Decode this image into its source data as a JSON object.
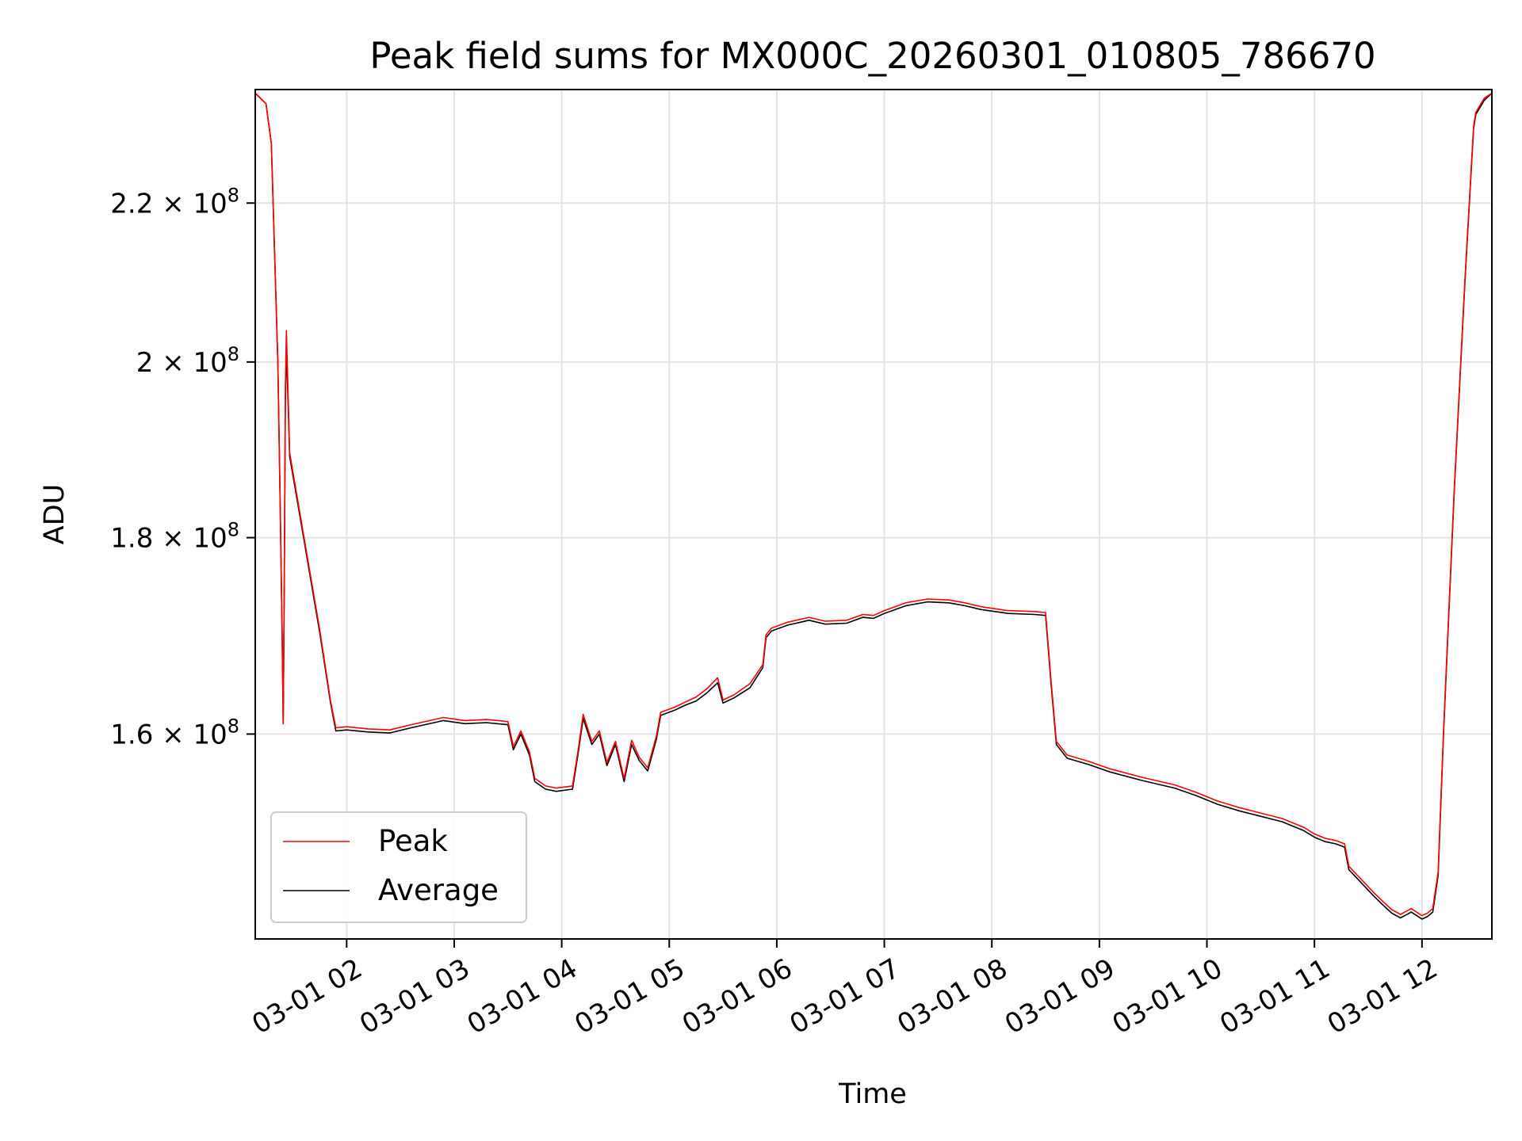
{
  "chart_data": {
    "type": "line",
    "title": "Peak field sums for MX000C_20260301_010805_786670",
    "xlabel": "Time",
    "ylabel": "ADU",
    "y_scale": "log",
    "x_unit": "hours since 2026-03-01 00:00",
    "xlim": [
      1.15,
      12.65
    ],
    "ylim": [
      141500000,
      235500000
    ],
    "y_ticks": [
      {
        "value": 160000000,
        "mantissa": "1.6",
        "exponent": "8"
      },
      {
        "value": 180000000,
        "mantissa": "1.8",
        "exponent": "8"
      },
      {
        "value": 200000000,
        "mantissa": "2",
        "exponent": "8"
      },
      {
        "value": 220000000,
        "mantissa": "2.2",
        "exponent": "8"
      }
    ],
    "x_ticks": [
      {
        "value": 2,
        "label": "03-01 02"
      },
      {
        "value": 3,
        "label": "03-01 03"
      },
      {
        "value": 4,
        "label": "03-01 04"
      },
      {
        "value": 5,
        "label": "03-01 05"
      },
      {
        "value": 6,
        "label": "03-01 06"
      },
      {
        "value": 7,
        "label": "03-01 07"
      },
      {
        "value": 8,
        "label": "03-01 08"
      },
      {
        "value": 9,
        "label": "03-01 09"
      },
      {
        "value": 10,
        "label": "03-01 10"
      },
      {
        "value": 11,
        "label": "03-01 11"
      },
      {
        "value": 12,
        "label": "03-01 12"
      }
    ],
    "grid": true,
    "legend_position": "lower-left",
    "series": [
      {
        "name": "Average",
        "color": "#000000",
        "points": [
          [
            1.15,
            235000000
          ],
          [
            1.25,
            233500000
          ],
          [
            1.3,
            228000000
          ],
          [
            1.36,
            200000000
          ],
          [
            1.38,
            185000000
          ],
          [
            1.4,
            170000000
          ],
          [
            1.41,
            161000000
          ],
          [
            1.42,
            175000000
          ],
          [
            1.43,
            195000000
          ],
          [
            1.44,
            202000000
          ],
          [
            1.47,
            189000000
          ],
          [
            1.6,
            180000000
          ],
          [
            1.75,
            170000000
          ],
          [
            1.85,
            163000000
          ],
          [
            1.9,
            160300000
          ],
          [
            2.0,
            160400000
          ],
          [
            2.2,
            160200000
          ],
          [
            2.4,
            160100000
          ],
          [
            2.6,
            160600000
          ],
          [
            2.9,
            161300000
          ],
          [
            3.1,
            161000000
          ],
          [
            3.3,
            161100000
          ],
          [
            3.5,
            160900000
          ],
          [
            3.55,
            158500000
          ],
          [
            3.62,
            160000000
          ],
          [
            3.7,
            158000000
          ],
          [
            3.75,
            155500000
          ],
          [
            3.85,
            154800000
          ],
          [
            3.95,
            154600000
          ],
          [
            4.1,
            154800000
          ],
          [
            4.15,
            158000000
          ],
          [
            4.2,
            161500000
          ],
          [
            4.28,
            159000000
          ],
          [
            4.35,
            160000000
          ],
          [
            4.42,
            157000000
          ],
          [
            4.5,
            159000000
          ],
          [
            4.58,
            155500000
          ],
          [
            4.65,
            159000000
          ],
          [
            4.72,
            157500000
          ],
          [
            4.8,
            156500000
          ],
          [
            4.88,
            159500000
          ],
          [
            4.92,
            161800000
          ],
          [
            5.05,
            162300000
          ],
          [
            5.15,
            162800000
          ],
          [
            5.25,
            163200000
          ],
          [
            5.35,
            164000000
          ],
          [
            5.45,
            165000000
          ],
          [
            5.5,
            163000000
          ],
          [
            5.6,
            163500000
          ],
          [
            5.75,
            164500000
          ],
          [
            5.87,
            166500000
          ],
          [
            5.9,
            169500000
          ],
          [
            5.95,
            170200000
          ],
          [
            6.1,
            170800000
          ],
          [
            6.3,
            171300000
          ],
          [
            6.45,
            170900000
          ],
          [
            6.65,
            171000000
          ],
          [
            6.8,
            171600000
          ],
          [
            6.9,
            171500000
          ],
          [
            7.0,
            172000000
          ],
          [
            7.2,
            172800000
          ],
          [
            7.4,
            173200000
          ],
          [
            7.6,
            173100000
          ],
          [
            7.75,
            172800000
          ],
          [
            7.9,
            172400000
          ],
          [
            8.15,
            172000000
          ],
          [
            8.4,
            171900000
          ],
          [
            8.5,
            171800000
          ],
          [
            8.55,
            165000000
          ],
          [
            8.6,
            159000000
          ],
          [
            8.7,
            157700000
          ],
          [
            8.9,
            157100000
          ],
          [
            9.1,
            156400000
          ],
          [
            9.4,
            155600000
          ],
          [
            9.7,
            154900000
          ],
          [
            9.9,
            154200000
          ],
          [
            10.1,
            153400000
          ],
          [
            10.3,
            152800000
          ],
          [
            10.5,
            152300000
          ],
          [
            10.7,
            151800000
          ],
          [
            10.9,
            151000000
          ],
          [
            11.0,
            150400000
          ],
          [
            11.1,
            150000000
          ],
          [
            11.2,
            149800000
          ],
          [
            11.28,
            149500000
          ],
          [
            11.32,
            147500000
          ],
          [
            11.45,
            146200000
          ],
          [
            11.55,
            145200000
          ],
          [
            11.65,
            144300000
          ],
          [
            11.72,
            143700000
          ],
          [
            11.8,
            143300000
          ],
          [
            11.9,
            143800000
          ],
          [
            12.0,
            143200000
          ],
          [
            12.05,
            143400000
          ],
          [
            12.1,
            143800000
          ],
          [
            12.15,
            147000000
          ],
          [
            12.2,
            160000000
          ],
          [
            12.3,
            185000000
          ],
          [
            12.4,
            210000000
          ],
          [
            12.48,
            230000000
          ],
          [
            12.5,
            232000000
          ],
          [
            12.52,
            232500000
          ],
          [
            12.58,
            234000000
          ],
          [
            12.65,
            235000000
          ]
        ]
      },
      {
        "name": "Peak",
        "color": "#ff0000",
        "points": [
          [
            1.15,
            235000000
          ],
          [
            1.25,
            233500000
          ],
          [
            1.3,
            228000000
          ],
          [
            1.36,
            200000000
          ],
          [
            1.38,
            185000000
          ],
          [
            1.4,
            170000000
          ],
          [
            1.41,
            161000000
          ],
          [
            1.42,
            175000000
          ],
          [
            1.43,
            197000000
          ],
          [
            1.44,
            203800000
          ],
          [
            1.47,
            189400000
          ],
          [
            1.6,
            180300000
          ],
          [
            1.75,
            170300000
          ],
          [
            1.85,
            163200000
          ],
          [
            1.9,
            160600000
          ],
          [
            2.0,
            160700000
          ],
          [
            2.2,
            160500000
          ],
          [
            2.4,
            160400000
          ],
          [
            2.6,
            160900000
          ],
          [
            2.9,
            161600000
          ],
          [
            3.1,
            161300000
          ],
          [
            3.3,
            161400000
          ],
          [
            3.5,
            161200000
          ],
          [
            3.55,
            158800000
          ],
          [
            3.62,
            160300000
          ],
          [
            3.7,
            158300000
          ],
          [
            3.75,
            155800000
          ],
          [
            3.85,
            155100000
          ],
          [
            3.95,
            154900000
          ],
          [
            4.1,
            155100000
          ],
          [
            4.15,
            158300000
          ],
          [
            4.2,
            161900000
          ],
          [
            4.28,
            159300000
          ],
          [
            4.35,
            160300000
          ],
          [
            4.42,
            157300000
          ],
          [
            4.5,
            159300000
          ],
          [
            4.58,
            155800000
          ],
          [
            4.65,
            159400000
          ],
          [
            4.72,
            157800000
          ],
          [
            4.8,
            156800000
          ],
          [
            4.88,
            159800000
          ],
          [
            4.92,
            162100000
          ],
          [
            5.05,
            162600000
          ],
          [
            5.15,
            163100000
          ],
          [
            5.25,
            163600000
          ],
          [
            5.35,
            164400000
          ],
          [
            5.45,
            165500000
          ],
          [
            5.5,
            163300000
          ],
          [
            5.6,
            163800000
          ],
          [
            5.75,
            164900000
          ],
          [
            5.87,
            166800000
          ],
          [
            5.9,
            169800000
          ],
          [
            5.95,
            170500000
          ],
          [
            6.1,
            171100000
          ],
          [
            6.3,
            171600000
          ],
          [
            6.45,
            171200000
          ],
          [
            6.65,
            171300000
          ],
          [
            6.8,
            171900000
          ],
          [
            6.9,
            171800000
          ],
          [
            7.0,
            172300000
          ],
          [
            7.2,
            173100000
          ],
          [
            7.4,
            173500000
          ],
          [
            7.6,
            173400000
          ],
          [
            7.75,
            173100000
          ],
          [
            7.9,
            172700000
          ],
          [
            8.15,
            172300000
          ],
          [
            8.4,
            172200000
          ],
          [
            8.5,
            172100000
          ],
          [
            8.55,
            165300000
          ],
          [
            8.6,
            159300000
          ],
          [
            8.7,
            158000000
          ],
          [
            8.9,
            157400000
          ],
          [
            9.1,
            156700000
          ],
          [
            9.4,
            155900000
          ],
          [
            9.7,
            155200000
          ],
          [
            9.9,
            154500000
          ],
          [
            10.1,
            153700000
          ],
          [
            10.3,
            153100000
          ],
          [
            10.5,
            152600000
          ],
          [
            10.7,
            152100000
          ],
          [
            10.9,
            151300000
          ],
          [
            11.0,
            150700000
          ],
          [
            11.1,
            150300000
          ],
          [
            11.2,
            150100000
          ],
          [
            11.28,
            149800000
          ],
          [
            11.32,
            147800000
          ],
          [
            11.45,
            146500000
          ],
          [
            11.55,
            145500000
          ],
          [
            11.65,
            144600000
          ],
          [
            11.72,
            144000000
          ],
          [
            11.8,
            143600000
          ],
          [
            11.9,
            144100000
          ],
          [
            12.0,
            143500000
          ],
          [
            12.05,
            143700000
          ],
          [
            12.1,
            144100000
          ],
          [
            12.15,
            147300000
          ],
          [
            12.2,
            160300000
          ],
          [
            12.3,
            185300000
          ],
          [
            12.4,
            210300000
          ],
          [
            12.48,
            230300000
          ],
          [
            12.5,
            232300000
          ],
          [
            12.52,
            232800000
          ],
          [
            12.58,
            234300000
          ],
          [
            12.65,
            235000000
          ]
        ]
      }
    ],
    "legend": [
      {
        "label": "Peak",
        "color": "#ff0000"
      },
      {
        "label": "Average",
        "color": "#000000"
      }
    ]
  }
}
